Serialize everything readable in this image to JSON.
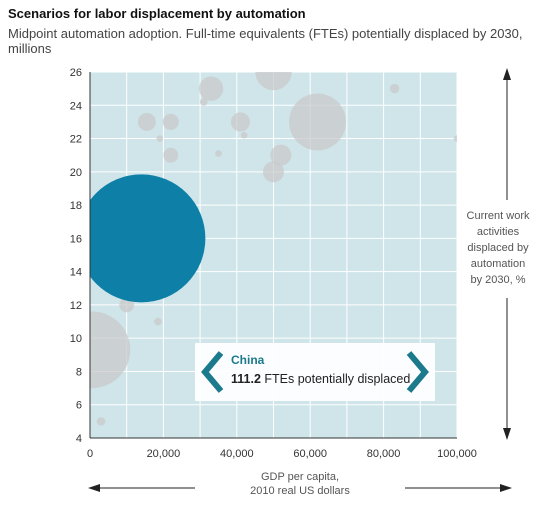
{
  "title": "Scenarios for labor displacement by automation",
  "subtitle": "Midpoint automation adoption. Full-time equivalents (FTEs) potentially displaced by 2030, millions",
  "ylabel_lines": [
    "Current work",
    "activities",
    "displaced by",
    "automation",
    "by 2030, %"
  ],
  "xlabel_lines": [
    "GDP per capita,",
    "2010 real US dollars"
  ],
  "callout": {
    "country": "China",
    "value": "111.2",
    "text": "FTEs potentially displaced"
  },
  "colors": {
    "plot_bg": "#cfe5ea",
    "grid": "#ffffff",
    "highlight": "#0e7fa6",
    "bubble": "#c9c9c9",
    "accent": "#1b7a8c"
  },
  "chart_data": {
    "type": "scatter",
    "xlim": [
      0,
      100000
    ],
    "ylim": [
      4,
      26
    ],
    "x_ticks": [
      "0",
      "20,000",
      "40,000",
      "60,000",
      "80,000",
      "100,000"
    ],
    "y_ticks": [
      "4",
      "6",
      "8",
      "10",
      "12",
      "14",
      "16",
      "18",
      "20",
      "22",
      "24",
      "26"
    ],
    "grid": true,
    "points": [
      {
        "x": 14000,
        "y": 16.0,
        "size": 111.2,
        "highlight": true,
        "label": "China"
      },
      {
        "x": 500,
        "y": 9.3,
        "size": 40,
        "highlight": false
      },
      {
        "x": 50000,
        "y": 26.0,
        "size": 9,
        "highlight": false
      },
      {
        "x": 62000,
        "y": 23.0,
        "size": 22,
        "highlight": false
      },
      {
        "x": 33000,
        "y": 25.0,
        "size": 4,
        "highlight": false
      },
      {
        "x": 41000,
        "y": 23.0,
        "size": 2.5,
        "highlight": false
      },
      {
        "x": 52000,
        "y": 21.0,
        "size": 3,
        "highlight": false
      },
      {
        "x": 15500,
        "y": 23.0,
        "size": 2.2,
        "highlight": false
      },
      {
        "x": 22000,
        "y": 23.0,
        "size": 1.8,
        "highlight": false
      },
      {
        "x": 22000,
        "y": 21.0,
        "size": 1.5,
        "highlight": false
      },
      {
        "x": 50000,
        "y": 20.0,
        "size": 3,
        "highlight": false
      },
      {
        "x": 31000,
        "y": 24.2,
        "size": 0.4,
        "highlight": false
      },
      {
        "x": 35000,
        "y": 21.1,
        "size": 0.3,
        "highlight": false
      },
      {
        "x": 42000,
        "y": 22.2,
        "size": 0.3,
        "highlight": false
      },
      {
        "x": 83000,
        "y": 25.0,
        "size": 0.6,
        "highlight": false
      },
      {
        "x": 100000,
        "y": 22.0,
        "size": 0.3,
        "highlight": false
      },
      {
        "x": 19000,
        "y": 22.0,
        "size": 0.3,
        "highlight": false
      },
      {
        "x": 18500,
        "y": 11.0,
        "size": 0.4,
        "highlight": false
      },
      {
        "x": 3000,
        "y": 5.0,
        "size": 0.5,
        "highlight": false
      },
      {
        "x": 10000,
        "y": 12.0,
        "size": 1.5,
        "highlight": false
      }
    ]
  }
}
